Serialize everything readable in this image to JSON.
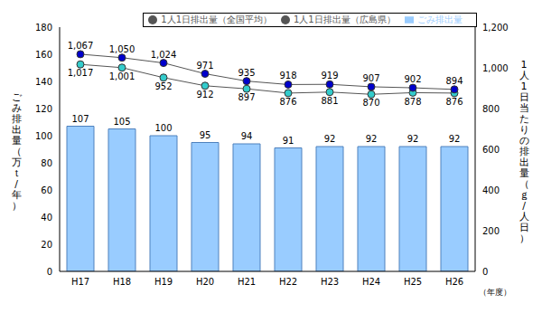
{
  "chart_data": {
    "type": "bar",
    "categories": [
      "H17",
      "H18",
      "H19",
      "H20",
      "H21",
      "H22",
      "H23",
      "H24",
      "H25",
      "H26"
    ],
    "x_label": "（年度）",
    "y_label": "ごみ排出量（万ｔ/年）",
    "y2_label": "1人1日当たりの排出量（ｇ/人日）",
    "ylim": [
      0,
      180
    ],
    "yticks": [
      0,
      20,
      40,
      60,
      80,
      100,
      120,
      140,
      160,
      180
    ],
    "y2lim": [
      0,
      1200
    ],
    "y2ticks": [
      0,
      200,
      400,
      600,
      800,
      {
        "value": 1000,
        "label": "1,000"
      },
      {
        "value": 1200,
        "label": "1,200"
      }
    ],
    "grid": false,
    "data_labels": true,
    "legend": "top",
    "series": [
      {
        "name": "ごみ排出量",
        "type": "bar",
        "color": "#99ccff",
        "values": [
          107,
          105,
          100,
          95,
          94,
          91,
          92,
          92,
          92,
          92
        ]
      },
      {
        "name": "1人1日排出量（広島県）",
        "type": "line",
        "axis": "y2",
        "color": "#33cccc",
        "marker": "circle",
        "values": [
          1017,
          1001,
          952,
          912,
          897,
          876,
          881,
          870,
          878,
          876
        ],
        "value_labels": [
          "1,017",
          "1,001",
          "952",
          "912",
          "897",
          "876",
          "881",
          "870",
          "878",
          "876"
        ]
      },
      {
        "name": "1人1日排出量（全国平均）",
        "type": "line",
        "axis": "y2",
        "color": "#0000cc",
        "marker": "circle",
        "values": [
          1067,
          1050,
          1024,
          971,
          935,
          918,
          919,
          907,
          902,
          894
        ],
        "value_labels": [
          "1,067",
          "1,050",
          "1,024",
          "971",
          "935",
          "918",
          "919",
          "907",
          "902",
          "894"
        ]
      }
    ]
  }
}
